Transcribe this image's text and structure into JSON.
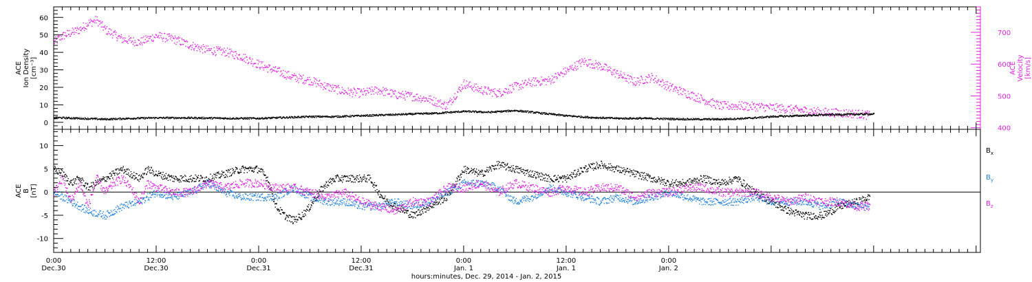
{
  "chart_data": [
    {
      "type": "scatter",
      "panel": "top",
      "left_axis_label_lines": [
        "ACE",
        "Ion Density",
        "[cm⁻³]"
      ],
      "right_axis_label_lines": [
        "ACE",
        "Velocity",
        "[km/s]"
      ],
      "left_ylim": [
        -4,
        66
      ],
      "left_yticks": [
        0,
        10,
        20,
        30,
        40,
        50,
        60
      ],
      "right_ylim": [
        395,
        780
      ],
      "right_yticks": [
        400,
        500,
        600,
        700
      ],
      "series": [
        {
          "axis": "left",
          "color": "#000000",
          "x_hours": [
            0,
            3,
            6,
            9,
            12,
            15,
            18,
            21,
            24,
            27,
            30,
            33,
            36,
            39,
            42,
            45,
            48,
            51,
            54,
            57,
            60,
            63,
            66,
            69,
            72,
            75,
            78,
            81,
            84,
            87,
            90,
            93,
            96
          ],
          "values": [
            3,
            2.5,
            2,
            2.5,
            2.8,
            2.8,
            2.7,
            2.5,
            2.5,
            3,
            3.5,
            3.5,
            4,
            4.5,
            5,
            5.5,
            6.5,
            6,
            7,
            5.5,
            4,
            3,
            2.5,
            2.5,
            2.2,
            2,
            2,
            2.5,
            3.5,
            4,
            4.5,
            4.8,
            5
          ]
        },
        {
          "axis": "right",
          "color": "#e020e0",
          "x_hours": [
            0,
            1,
            2,
            3,
            4,
            5,
            6,
            8,
            10,
            12,
            14,
            16,
            18,
            20,
            22,
            24,
            26,
            28,
            30,
            32,
            34,
            36,
            38,
            40,
            42,
            44,
            46,
            48,
            50,
            52,
            54,
            56,
            58,
            60,
            62,
            64,
            66,
            68,
            70,
            72,
            74,
            76,
            78,
            80,
            82,
            84,
            86,
            88,
            90,
            92,
            94,
            95.5
          ],
          "values": [
            670,
            690,
            700,
            710,
            730,
            740,
            710,
            680,
            670,
            690,
            680,
            660,
            645,
            640,
            625,
            600,
            580,
            560,
            550,
            530,
            515,
            510,
            520,
            505,
            500,
            490,
            470,
            540,
            520,
            510,
            530,
            545,
            550,
            580,
            610,
            595,
            570,
            545,
            560,
            530,
            510,
            490,
            470,
            470,
            468,
            465,
            460,
            455,
            450,
            448,
            445,
            440
          ]
        }
      ]
    },
    {
      "type": "scatter",
      "panel": "bottom",
      "axis_label_lines": [
        "ACE",
        "B",
        "[nT]"
      ],
      "ylim": [
        -13,
        13.5
      ],
      "yticks": [
        -10,
        -5,
        0,
        5,
        10
      ],
      "zero_line": true,
      "series": [
        {
          "label": "B",
          "subscript": "x",
          "color": "#000000",
          "x_hours": [
            0,
            1,
            2,
            3,
            4,
            5,
            6,
            7,
            8,
            9,
            10,
            11,
            12,
            14,
            16,
            18,
            20,
            22,
            24,
            25,
            26,
            27,
            28,
            29,
            30,
            31,
            32,
            33,
            34,
            35,
            36,
            37,
            38,
            39,
            40,
            41,
            42,
            43,
            44,
            45,
            46,
            48,
            50,
            52,
            54,
            56,
            58,
            60,
            62,
            64,
            66,
            68,
            70,
            72,
            74,
            76,
            78,
            80,
            82,
            84,
            86,
            88,
            90,
            92,
            94,
            95.5
          ],
          "values": [
            5,
            4,
            2,
            3,
            1,
            2,
            3,
            4,
            5,
            4,
            3,
            5,
            4,
            3,
            3,
            3,
            4,
            5,
            5,
            3,
            -3,
            -5,
            -6,
            -5,
            -3,
            0,
            2,
            3,
            3,
            3,
            3,
            3,
            0,
            -2,
            -3,
            -4,
            -5,
            -4,
            -3,
            -2,
            -1,
            5,
            4,
            6,
            5,
            4,
            3,
            3,
            5,
            6,
            5,
            4,
            3,
            2,
            2,
            3,
            2,
            3,
            0,
            -2,
            -4,
            -5,
            -5,
            -3,
            -2,
            -1
          ]
        },
        {
          "label": "B",
          "subscript": "y",
          "color": "#2080e0",
          "x_hours": [
            0,
            2,
            4,
            6,
            8,
            10,
            12,
            14,
            16,
            18,
            20,
            22,
            24,
            26,
            28,
            30,
            32,
            34,
            36,
            38,
            40,
            42,
            44,
            46,
            48,
            50,
            52,
            54,
            56,
            58,
            60,
            62,
            64,
            66,
            68,
            70,
            72,
            74,
            76,
            78,
            80,
            82,
            84,
            86,
            88,
            90,
            92,
            94,
            95.5
          ],
          "values": [
            0,
            -2,
            -4,
            -5,
            -3,
            -2,
            0,
            -1,
            0,
            2,
            0,
            -1,
            -1,
            -1,
            1,
            -1,
            -2,
            -2,
            -3,
            -3,
            -2,
            -3,
            -2,
            0,
            2,
            2,
            1,
            -2,
            -1,
            1,
            0,
            -1,
            -2,
            -1,
            -2,
            -1,
            0,
            -1,
            -2,
            -2,
            -2,
            -1,
            -2,
            -2,
            -2,
            -3,
            -2,
            -3,
            -3
          ]
        },
        {
          "label": "B",
          "subscript": "z",
          "color": "#e020e0",
          "x_hours": [
            0,
            1,
            2,
            3,
            4,
            5,
            6,
            7,
            8,
            9,
            10,
            11,
            12,
            14,
            16,
            18,
            20,
            22,
            24,
            26,
            28,
            30,
            32,
            34,
            36,
            38,
            40,
            42,
            44,
            46,
            48,
            50,
            52,
            54,
            56,
            58,
            60,
            62,
            64,
            66,
            68,
            70,
            72,
            74,
            76,
            78,
            80,
            82,
            84,
            86,
            88,
            90,
            92,
            94,
            95.5
          ],
          "values": [
            0,
            3,
            -2,
            2,
            -3,
            3,
            0,
            2,
            3,
            1,
            -2,
            2,
            1,
            0,
            0,
            2,
            1,
            2,
            2,
            1,
            1,
            0,
            -1,
            0,
            -2,
            -3,
            -4,
            -2,
            -2,
            1,
            1,
            2,
            0,
            2,
            1,
            0,
            1,
            0,
            1,
            1,
            -1,
            0,
            0,
            1,
            1,
            0,
            0,
            0,
            -1,
            -2,
            -1,
            -2,
            -2,
            -3,
            -3
          ]
        }
      ]
    }
  ],
  "x_axis": {
    "title": "hours:minutes, Dec. 29, 2014 - Jan. 2, 2015",
    "xlim_hours": [
      0,
      108.5
    ],
    "major_ticks": [
      {
        "hour": 0,
        "time": "0:00",
        "date": "Dec.30"
      },
      {
        "hour": 12,
        "time": "12:00",
        "date": "Dec.30"
      },
      {
        "hour": 24,
        "time": "0:00",
        "date": "Dec.31"
      },
      {
        "hour": 36,
        "time": "12:00",
        "date": "Dec.31"
      },
      {
        "hour": 48,
        "time": "0:00",
        "date": "Jan. 1"
      },
      {
        "hour": 60,
        "time": "12:00",
        "date": "Jan. 1"
      },
      {
        "hour": 72,
        "time": "0:00",
        "date": "Jan. 2"
      }
    ]
  },
  "colors": {
    "axis": "#000000",
    "density": "#000000",
    "velocity": "#e020e0",
    "bx": "#000000",
    "by": "#2080e0",
    "bz": "#e020e0"
  }
}
